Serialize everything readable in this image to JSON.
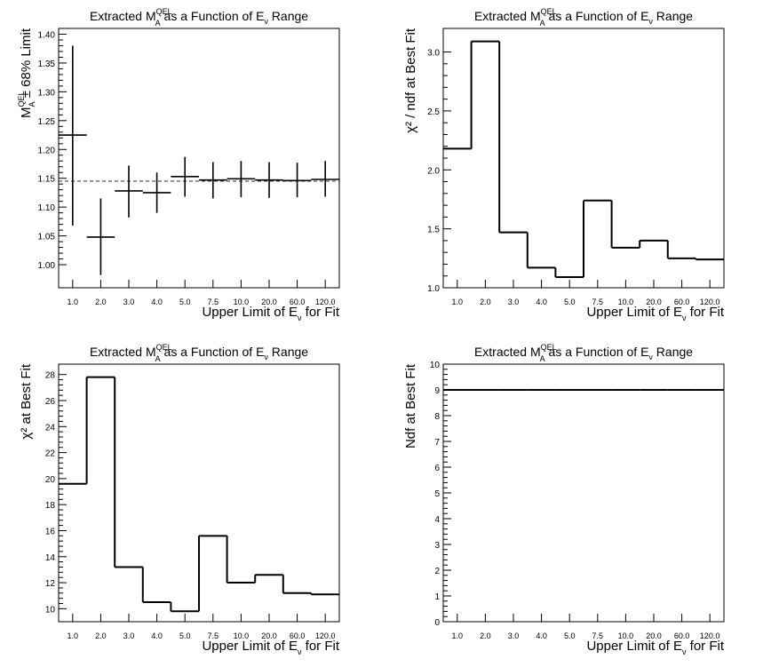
{
  "chart_data": [
    {
      "id": "p1",
      "type": "scatter",
      "title": "Extracted M<sub>A</sub><sup>QEL</sup> as a Function of E<sub>ν</sub> Range",
      "title_parts": {
        "pre": "Extracted M",
        "sup": "QEL",
        "sub1": "A",
        "mid": " as a Function of E",
        "sub2": "ν",
        "post": " Range"
      },
      "xlabel_parts": {
        "pre": "Upper Limit of E",
        "sub": "ν",
        "post": " for Fit"
      },
      "ylabel_parts": {
        "pre": "M",
        "sup": "QEL",
        "sub": "A",
        "post": " ± 68% Limit"
      },
      "categories": [
        "1.0",
        "2.0",
        "3.0",
        "4.0",
        "5.0",
        "7.5",
        "10.0",
        "20.0",
        "60.0",
        "120.0"
      ],
      "values": [
        1.225,
        1.048,
        1.128,
        1.125,
        1.153,
        1.147,
        1.149,
        1.147,
        1.146,
        1.148
      ],
      "err_low": [
        1.068,
        0.982,
        1.082,
        1.09,
        1.118,
        1.115,
        1.117,
        1.116,
        1.117,
        1.118
      ],
      "err_high": [
        1.38,
        1.115,
        1.172,
        1.16,
        1.187,
        1.178,
        1.18,
        1.178,
        1.177,
        1.18
      ],
      "reference_line": 1.145,
      "ylim": [
        0.96,
        1.41
      ],
      "yticks": [
        "1.00",
        "1.05",
        "1.10",
        "1.15",
        "1.20",
        "1.25",
        "1.30",
        "1.35",
        "1.40"
      ]
    },
    {
      "id": "p2",
      "type": "bar",
      "title_parts": {
        "pre": "Extracted M",
        "sup": "QEL",
        "sub1": "A",
        "mid": " as a Function of E",
        "sub2": "ν",
        "post": " Range"
      },
      "xlabel_parts": {
        "pre": "Upper Limit of E",
        "sub": "ν",
        "post": " for Fit"
      },
      "ylabel": "χ² / ndf at Best Fit",
      "categories": [
        "1.0",
        "2.0",
        "3.0",
        "4.0",
        "5.0",
        "7.5",
        "10.0",
        "20.0",
        "60.0",
        "120.0"
      ],
      "values": [
        2.18,
        3.09,
        1.47,
        1.17,
        1.09,
        1.74,
        1.34,
        1.4,
        1.25,
        1.24
      ],
      "ylim": [
        1.0,
        3.2
      ],
      "yticks": [
        "1.0",
        "1.5",
        "2.0",
        "2.5",
        "3.0"
      ]
    },
    {
      "id": "p3",
      "type": "bar",
      "title_parts": {
        "pre": "Extracted M",
        "sup": "QEL",
        "sub1": "A",
        "mid": " as a Function of E",
        "sub2": "ν",
        "post": " Range"
      },
      "xlabel_parts": {
        "pre": "Upper Limit of E",
        "sub": "ν",
        "post": " for Fit"
      },
      "ylabel": "χ² at Best Fit",
      "categories": [
        "1.0",
        "2.0",
        "3.0",
        "4.0",
        "5.0",
        "7.5",
        "10.0",
        "20.0",
        "60.0",
        "120.0"
      ],
      "values": [
        19.6,
        27.8,
        13.2,
        10.5,
        9.8,
        15.6,
        12.0,
        12.6,
        11.2,
        11.1
      ],
      "ylim": [
        9.0,
        28.8
      ],
      "yticks": [
        "10",
        "12",
        "14",
        "16",
        "18",
        "20",
        "22",
        "24",
        "26",
        "28"
      ]
    },
    {
      "id": "p4",
      "type": "bar",
      "title_parts": {
        "pre": "Extracted M",
        "sup": "QEL",
        "sub1": "A",
        "mid": " as a Function of E",
        "sub2": "ν",
        "post": " Range"
      },
      "xlabel_parts": {
        "pre": "Upper Limit of E",
        "sub": "ν",
        "post": " for Fit"
      },
      "ylabel": "Ndf at Best Fit",
      "categories": [
        "1.0",
        "2.0",
        "3.0",
        "4.0",
        "5.0",
        "7.5",
        "10.0",
        "20.0",
        "60.0",
        "120.0"
      ],
      "values": [
        9,
        9,
        9,
        9,
        9,
        9,
        9,
        9,
        9,
        9
      ],
      "ylim": [
        0,
        10
      ],
      "yticks": [
        "0",
        "1",
        "2",
        "3",
        "4",
        "5",
        "6",
        "7",
        "8",
        "9",
        "10"
      ]
    }
  ]
}
